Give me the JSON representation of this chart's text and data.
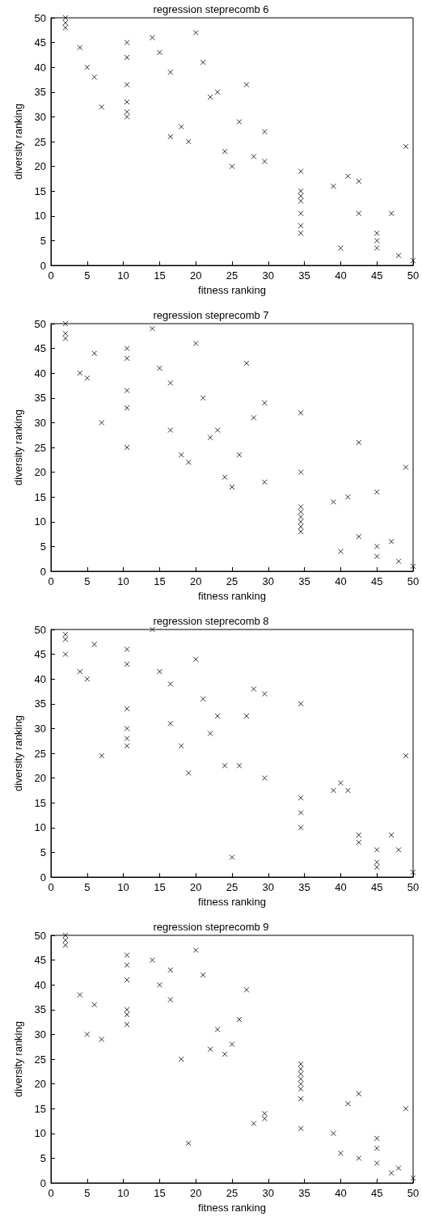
{
  "chart_data": [
    {
      "type": "scatter",
      "title": "regression steprecomb 6",
      "xlabel": "fitness ranking",
      "ylabel": "diversity ranking",
      "marker": "cross",
      "color": "#000000",
      "xlim": [
        0,
        50
      ],
      "ylim": [
        0,
        50
      ],
      "xticks": [
        0,
        5,
        10,
        15,
        20,
        25,
        30,
        35,
        40,
        45,
        50
      ],
      "yticks": [
        0,
        5,
        10,
        15,
        20,
        25,
        30,
        35,
        40,
        45,
        50
      ],
      "x": [
        2,
        2,
        2,
        4,
        5,
        6,
        7,
        10.5,
        10.5,
        10.5,
        10.5,
        10.5,
        10.5,
        14,
        15,
        16.5,
        16.5,
        18,
        19,
        20,
        21,
        22,
        23,
        24,
        25,
        26,
        27,
        28,
        29.5,
        29.5,
        34.5,
        34.5,
        34.5,
        34.5,
        34.5,
        34.5,
        34.5,
        39,
        40,
        41,
        42.5,
        42.5,
        45,
        45,
        45,
        47,
        48,
        49,
        50
      ],
      "values": [
        50,
        49,
        48,
        44,
        40,
        38,
        32,
        45,
        42,
        36.5,
        33,
        31,
        30,
        46,
        43,
        39,
        26,
        28,
        25,
        47,
        41,
        34,
        35,
        23,
        20,
        29,
        36.5,
        22,
        27,
        21,
        19,
        15,
        14,
        13,
        10.5,
        8,
        6.5,
        16,
        3.5,
        18,
        17,
        10.5,
        6.5,
        5,
        3.5,
        10.5,
        2,
        24,
        1
      ]
    },
    {
      "type": "scatter",
      "title": "regression steprecomb 7",
      "xlabel": "fitness ranking",
      "ylabel": "diversity ranking",
      "marker": "cross",
      "color": "#000000",
      "xlim": [
        0,
        50
      ],
      "ylim": [
        0,
        50
      ],
      "xticks": [
        0,
        5,
        10,
        15,
        20,
        25,
        30,
        35,
        40,
        45,
        50
      ],
      "yticks": [
        0,
        5,
        10,
        15,
        20,
        25,
        30,
        35,
        40,
        45,
        50
      ],
      "x": [
        2,
        2,
        2,
        4,
        5,
        6,
        7,
        10.5,
        10.5,
        10.5,
        10.5,
        10.5,
        14,
        15,
        16.5,
        16.5,
        18,
        19,
        20,
        21,
        22,
        23,
        24,
        25,
        26,
        27,
        28,
        29.5,
        29.5,
        34.5,
        34.5,
        34.5,
        34.5,
        34.5,
        34.5,
        34.5,
        34.5,
        39,
        40,
        41,
        42.5,
        42.5,
        45,
        45,
        45,
        47,
        48,
        49,
        50
      ],
      "values": [
        50,
        48,
        47,
        40,
        39,
        44,
        30,
        45,
        43,
        36.5,
        33,
        25,
        49,
        41,
        38,
        28.5,
        23.5,
        22,
        46,
        35,
        27,
        28.5,
        19,
        17,
        23.5,
        42,
        31,
        34,
        18,
        32,
        20,
        13,
        12,
        11,
        10,
        9,
        8,
        14,
        4,
        15,
        26,
        7,
        16,
        5,
        3,
        6,
        2,
        21,
        1
      ]
    },
    {
      "type": "scatter",
      "title": "regression steprecomb 8",
      "xlabel": "fitness ranking",
      "ylabel": "diversity ranking",
      "marker": "cross",
      "color": "#000000",
      "xlim": [
        0,
        50
      ],
      "ylim": [
        0,
        50
      ],
      "xticks": [
        0,
        5,
        10,
        15,
        20,
        25,
        30,
        35,
        40,
        45,
        50
      ],
      "yticks": [
        0,
        5,
        10,
        15,
        20,
        25,
        30,
        35,
        40,
        45,
        50
      ],
      "x": [
        2,
        2,
        2,
        4,
        5,
        6,
        7,
        10.5,
        10.5,
        10.5,
        10.5,
        10.5,
        10.5,
        14,
        15,
        16.5,
        16.5,
        18,
        19,
        20,
        21,
        22,
        23,
        24,
        25,
        26,
        27,
        28,
        29.5,
        29.5,
        34.5,
        34.5,
        34.5,
        34.5,
        39,
        40,
        41,
        42.5,
        42.5,
        45,
        45,
        45,
        47,
        48,
        49,
        50
      ],
      "values": [
        49,
        48,
        45,
        41.5,
        40,
        47,
        24.5,
        46,
        43,
        34,
        30,
        28,
        26.5,
        50,
        41.5,
        39,
        31,
        26.5,
        21,
        44,
        36,
        29,
        32.5,
        22.5,
        4,
        22.5,
        32.5,
        38,
        37,
        20,
        35,
        16,
        13,
        10,
        17.5,
        19,
        17.5,
        8.5,
        7,
        5.5,
        3,
        2,
        8.5,
        5.5,
        24.5,
        1
      ]
    },
    {
      "type": "scatter",
      "title": "regression steprecomb 9",
      "xlabel": "fitness ranking",
      "ylabel": "diversity ranking",
      "marker": "cross",
      "color": "#000000",
      "xlim": [
        0,
        50
      ],
      "ylim": [
        0,
        50
      ],
      "xticks": [
        0,
        5,
        10,
        15,
        20,
        25,
        30,
        35,
        40,
        45,
        50
      ],
      "yticks": [
        0,
        5,
        10,
        15,
        20,
        25,
        30,
        35,
        40,
        45,
        50
      ],
      "x": [
        2,
        2,
        2,
        4,
        5,
        6,
        7,
        10.5,
        10.5,
        10.5,
        10.5,
        10.5,
        10.5,
        14,
        15,
        16.5,
        16.5,
        18,
        19,
        20,
        21,
        22,
        23,
        24,
        25,
        26,
        27,
        28,
        29.5,
        29.5,
        34.5,
        34.5,
        34.5,
        34.5,
        34.5,
        34.5,
        34.5,
        34.5,
        39,
        40,
        41,
        42.5,
        42.5,
        45,
        45,
        45,
        47,
        48,
        49,
        50
      ],
      "values": [
        50,
        49,
        48,
        38,
        30,
        36,
        29,
        46,
        44,
        41,
        35,
        34,
        32,
        45,
        40,
        43,
        37,
        25,
        8,
        47,
        42,
        27,
        31,
        26,
        28,
        33,
        39,
        12,
        14,
        13,
        24,
        23,
        22,
        21,
        20,
        19,
        17,
        11,
        10,
        6,
        16,
        18,
        5,
        9,
        7,
        4,
        2,
        3,
        15,
        1
      ]
    }
  ]
}
